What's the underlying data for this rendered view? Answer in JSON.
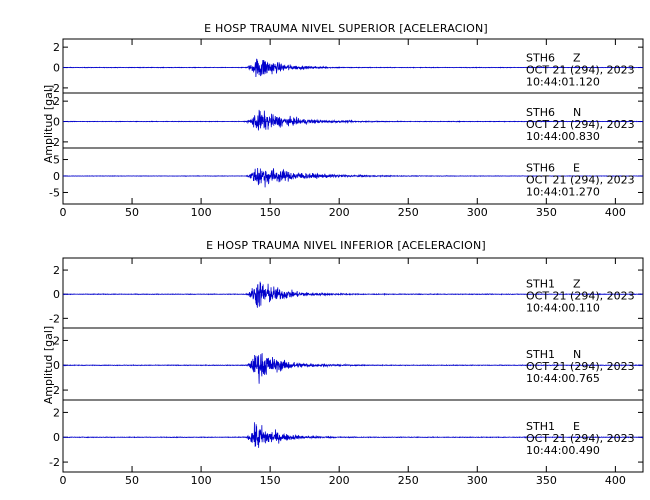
{
  "chart_data": [
    {
      "type": "line",
      "title": "E HOSP TRAUMA NIVEL SUPERIOR [ACELERACION]",
      "xlabel": "",
      "ylabel": "Amplitud [gal]",
      "xlim": [
        0,
        420
      ],
      "x_ticks": [
        "0",
        "50",
        "100",
        "150",
        "200",
        "250",
        "300",
        "350",
        "400"
      ],
      "traces": [
        {
          "station": "STH6",
          "component": "Z",
          "date": "OCT 21 (294), 2023",
          "time": "10:44:01.120",
          "ylim": [
            -2.5,
            2.8
          ],
          "y_ticks": [
            "2",
            "0",
            "-2"
          ],
          "onset": 132,
          "peak_time": 142,
          "peak_amp": 2.6,
          "decay": 14,
          "noise": 0.05
        },
        {
          "station": "STH6",
          "component": "N",
          "date": "OCT 21 (294), 2023",
          "time": "10:44:00.830",
          "ylim": [
            -2.6,
            2.8
          ],
          "y_ticks": [
            "2",
            "0",
            "-2"
          ],
          "onset": 132,
          "peak_time": 141,
          "peak_amp": 2.3,
          "decay": 22,
          "noise": 0.05
        },
        {
          "station": "STH6",
          "component": "E",
          "date": "OCT 21 (294), 2023",
          "time": "10:44:01.270",
          "ylim": [
            -8.5,
            8.5
          ],
          "y_ticks": [
            "5",
            "0",
            "-5"
          ],
          "onset": 132,
          "peak_time": 141,
          "peak_amp": 7.5,
          "decay": 25,
          "noise": 0.12
        }
      ]
    },
    {
      "type": "line",
      "title": "E HOSP TRAUMA NIVEL INFERIOR [ACELERACION]",
      "xlabel": "",
      "ylabel": "Amplitud [gal]",
      "xlim": [
        0,
        420
      ],
      "x_ticks": [
        "0",
        "50",
        "100",
        "150",
        "200",
        "250",
        "300",
        "350",
        "400"
      ],
      "traces": [
        {
          "station": "STH1",
          "component": "Z",
          "date": "OCT 21 (294), 2023",
          "time": "10:44:00.110",
          "ylim": [
            -2.8,
            3.0
          ],
          "y_ticks": [
            "2",
            "0",
            "-2"
          ],
          "onset": 132,
          "peak_time": 141,
          "peak_amp": 2.7,
          "decay": 16,
          "noise": 0.05
        },
        {
          "station": "STH1",
          "component": "N",
          "date": "OCT 21 (294), 2023",
          "time": "10:44:00.765",
          "ylim": [
            -2.8,
            3.0
          ],
          "y_ticks": [
            "2",
            "0",
            "-2"
          ],
          "onset": 132,
          "peak_time": 141,
          "peak_amp": 2.6,
          "decay": 16,
          "noise": 0.05
        },
        {
          "station": "STH1",
          "component": "E",
          "date": "OCT 21 (294), 2023",
          "time": "10:44:00.490",
          "ylim": [
            -2.8,
            3.0
          ],
          "y_ticks": [
            "2",
            "0",
            "-2"
          ],
          "onset": 132,
          "peak_time": 140,
          "peak_amp": 2.5,
          "decay": 14,
          "noise": 0.05
        }
      ]
    }
  ],
  "colors": {
    "trace": "#0000cc",
    "axis": "#000000",
    "background": "#ffffff"
  }
}
